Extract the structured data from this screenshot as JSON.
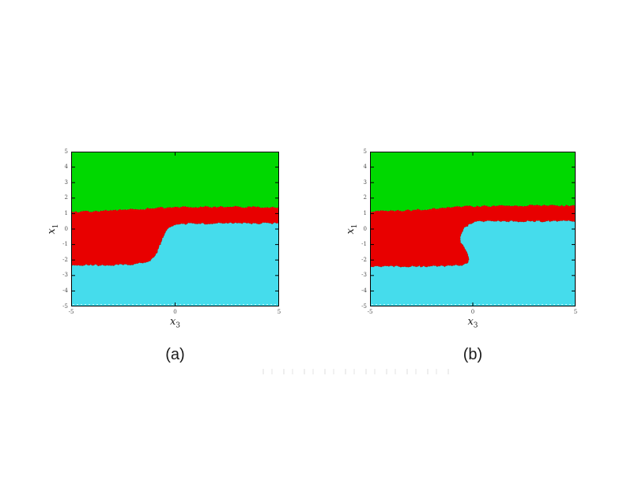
{
  "page": {
    "background": "#ffffff"
  },
  "chart_data": {
    "type": "area",
    "region_colors": {
      "top": "#00D800",
      "middle": "#E80000",
      "bottom": "#45DCEC"
    },
    "frame_color": "#000000",
    "plots": [
      {
        "id": "a",
        "caption": "(a)",
        "xlabel": {
          "base": "x",
          "sub": "3"
        },
        "ylabel": {
          "base": "x",
          "sub": "1"
        },
        "xlim": [
          -5,
          5
        ],
        "ylim": [
          -5,
          5
        ],
        "x_ticks": [
          -5,
          0,
          5
        ],
        "y_ticks": [
          5,
          4,
          3,
          2,
          1,
          0,
          -1,
          -2,
          -3,
          -4,
          -5
        ],
        "green_red_boundary": [
          [
            -5,
            1.1
          ],
          [
            -4,
            1.15
          ],
          [
            -3,
            1.2
          ],
          [
            -2,
            1.27
          ],
          [
            -1,
            1.35
          ],
          [
            -0.5,
            1.38
          ],
          [
            0,
            1.41
          ],
          [
            1,
            1.43
          ],
          [
            2,
            1.44
          ],
          [
            3,
            1.44
          ],
          [
            4,
            1.43
          ],
          [
            5,
            1.43
          ]
        ],
        "red_cyan_boundary_right_to_left": [
          [
            5,
            0.38
          ],
          [
            4,
            0.37
          ],
          [
            3,
            0.37
          ],
          [
            2,
            0.36
          ],
          [
            1,
            0.35
          ],
          [
            0.3,
            0.33
          ],
          [
            -0.1,
            0.22
          ],
          [
            -0.4,
            -0.1
          ],
          [
            -0.6,
            -0.6
          ],
          [
            -0.75,
            -1.1
          ],
          [
            -0.9,
            -1.6
          ],
          [
            -1.1,
            -1.95
          ],
          [
            -1.4,
            -2.15
          ],
          [
            -1.8,
            -2.25
          ],
          [
            -2.5,
            -2.3
          ],
          [
            -3.5,
            -2.32
          ],
          [
            -4.5,
            -2.33
          ],
          [
            -5,
            -2.35
          ]
        ]
      },
      {
        "id": "b",
        "caption": "(b)",
        "xlabel": {
          "base": "x",
          "sub": "3"
        },
        "ylabel": {
          "base": "x",
          "sub": "1"
        },
        "xlim": [
          -5,
          5
        ],
        "ylim": [
          -5,
          5
        ],
        "x_ticks": [
          -5,
          0,
          5
        ],
        "y_ticks": [
          5,
          4,
          3,
          2,
          1,
          0,
          -1,
          -2,
          -3,
          -4,
          -5
        ],
        "green_red_boundary": [
          [
            -5,
            1.12
          ],
          [
            -4,
            1.17
          ],
          [
            -3,
            1.22
          ],
          [
            -2,
            1.3
          ],
          [
            -1,
            1.4
          ],
          [
            0,
            1.47
          ],
          [
            1,
            1.5
          ],
          [
            2,
            1.52
          ],
          [
            3,
            1.52
          ],
          [
            4,
            1.52
          ],
          [
            5,
            1.5
          ]
        ],
        "red_cyan_boundary_right_to_left": [
          [
            5,
            0.5
          ],
          [
            4,
            0.5
          ],
          [
            3,
            0.5
          ],
          [
            2,
            0.5
          ],
          [
            1,
            0.49
          ],
          [
            0.3,
            0.47
          ],
          [
            -0.1,
            0.38
          ],
          [
            -0.35,
            0.15
          ],
          [
            -0.55,
            -0.25
          ],
          [
            -0.62,
            -0.6
          ],
          [
            -0.58,
            -0.9
          ],
          [
            -0.45,
            -1.15
          ],
          [
            -0.3,
            -1.4
          ],
          [
            -0.2,
            -1.7
          ],
          [
            -0.17,
            -1.95
          ],
          [
            -0.25,
            -2.15
          ],
          [
            -0.5,
            -2.3
          ],
          [
            -0.9,
            -2.38
          ],
          [
            -1.5,
            -2.4
          ],
          [
            -2.5,
            -2.42
          ],
          [
            -3.5,
            -2.42
          ],
          [
            -4.5,
            -2.4
          ],
          [
            -5,
            -2.42
          ]
        ]
      }
    ]
  }
}
